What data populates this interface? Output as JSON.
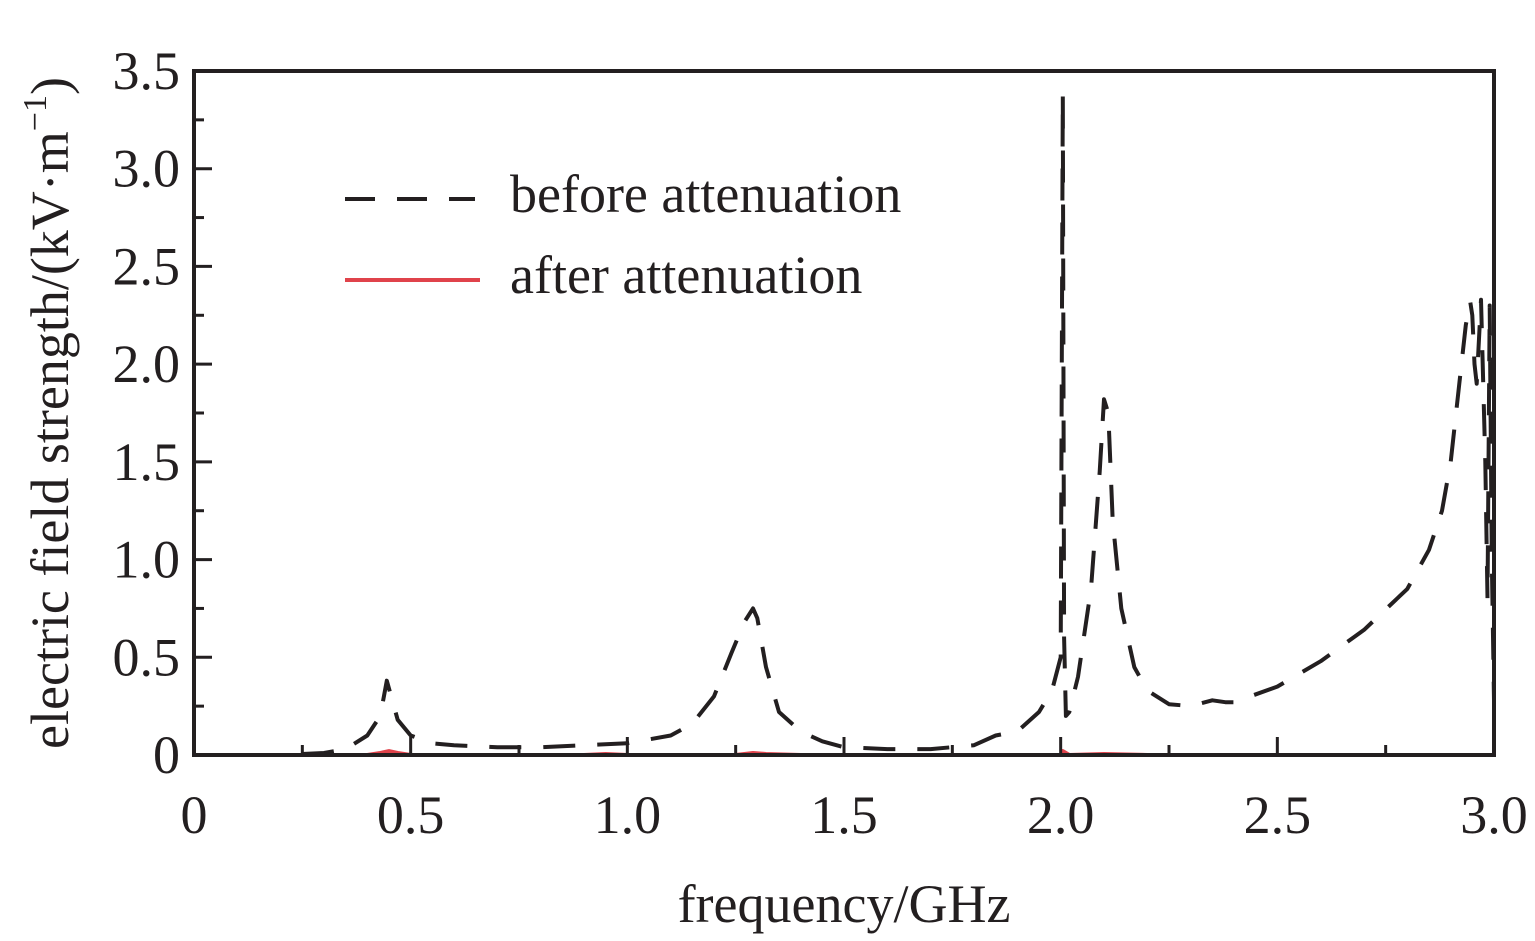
{
  "chart_data": {
    "type": "line",
    "title": "",
    "xlabel": "frequency/GHz",
    "ylabel": "electric field strength/(kV·m",
    "ylabel_sup": "−1",
    "ylabel_close": ")",
    "xlim": [
      0,
      3.0
    ],
    "ylim": [
      0,
      3.5
    ],
    "x_ticks": [
      0,
      0.5,
      1.0,
      1.5,
      2.0,
      2.5,
      3.0
    ],
    "x_tick_labels": [
      "0",
      "0.5",
      "1.0",
      "1.5",
      "2.0",
      "2.5",
      "3.0"
    ],
    "y_ticks": [
      0,
      0.5,
      1.0,
      1.5,
      2.0,
      2.5,
      3.0,
      3.5
    ],
    "y_tick_labels": [
      "0",
      "0.5",
      "1.0",
      "1.5",
      "2.0",
      "2.5",
      "3.0",
      "3.5"
    ],
    "grid": false,
    "legend_position": "top-left",
    "series": [
      {
        "name": "before attenuation",
        "color": "#231f20",
        "style": "dashed",
        "x": [
          0.0,
          0.2,
          0.3,
          0.35,
          0.4,
          0.43,
          0.445,
          0.455,
          0.47,
          0.5,
          0.55,
          0.6,
          0.7,
          0.8,
          0.9,
          1.0,
          1.1,
          1.15,
          1.2,
          1.24,
          1.27,
          1.29,
          1.3,
          1.32,
          1.35,
          1.4,
          1.45,
          1.5,
          1.6,
          1.7,
          1.8,
          1.85,
          1.9,
          1.95,
          1.98,
          2.0,
          2.005,
          2.008,
          2.012,
          2.02,
          2.04,
          2.07,
          2.09,
          2.1,
          2.11,
          2.12,
          2.14,
          2.17,
          2.2,
          2.25,
          2.3,
          2.35,
          2.38,
          2.4,
          2.5,
          2.6,
          2.7,
          2.8,
          2.85,
          2.88,
          2.9,
          2.92,
          2.935,
          2.945,
          2.95,
          2.955,
          2.96,
          2.97,
          2.98,
          2.985,
          2.99,
          2.995,
          3.0
        ],
        "y": [
          0.0,
          0.0,
          0.01,
          0.03,
          0.1,
          0.2,
          0.38,
          0.3,
          0.18,
          0.1,
          0.06,
          0.05,
          0.04,
          0.04,
          0.05,
          0.06,
          0.1,
          0.16,
          0.3,
          0.52,
          0.68,
          0.75,
          0.7,
          0.45,
          0.22,
          0.12,
          0.07,
          0.04,
          0.03,
          0.03,
          0.05,
          0.1,
          0.12,
          0.22,
          0.33,
          0.5,
          3.38,
          0.6,
          0.2,
          0.22,
          0.4,
          0.85,
          1.45,
          1.82,
          1.75,
          1.2,
          0.75,
          0.45,
          0.33,
          0.26,
          0.25,
          0.28,
          0.27,
          0.27,
          0.35,
          0.48,
          0.64,
          0.85,
          1.05,
          1.25,
          1.5,
          1.9,
          2.2,
          2.32,
          2.25,
          2.0,
          1.9,
          2.33,
          1.5,
          0.8,
          2.3,
          1.0,
          0.28
        ]
      },
      {
        "name": "after attenuation",
        "color": "#e0434b",
        "style": "solid",
        "x": [
          0.0,
          0.3,
          0.4,
          0.43,
          0.45,
          0.47,
          0.5,
          0.9,
          0.95,
          1.0,
          1.25,
          1.29,
          1.32,
          1.4,
          1.5,
          1.95,
          2.0,
          2.005,
          2.02,
          2.1,
          2.2,
          2.5,
          2.8,
          2.95,
          3.0
        ],
        "y": [
          0.0,
          0.0,
          0.0,
          0.01,
          0.02,
          0.01,
          0.0,
          0.0,
          0.005,
          0.0,
          0.0,
          0.01,
          0.005,
          0.0,
          0.0,
          0.0,
          0.0,
          0.02,
          0.0,
          0.005,
          0.0,
          0.0,
          0.0,
          0.0,
          0.0
        ]
      }
    ]
  }
}
